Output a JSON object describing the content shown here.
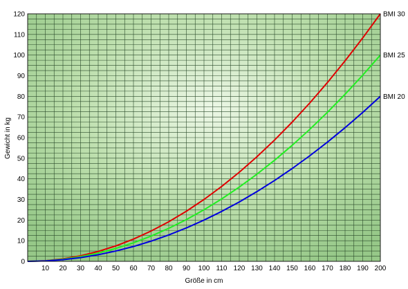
{
  "chart_data": {
    "type": "line",
    "title": "",
    "xlabel": "Größe in cm",
    "ylabel": "Gewicht in kg",
    "xlim": [
      0,
      200
    ],
    "ylim": [
      0,
      120
    ],
    "x_ticks": [
      "10",
      "20",
      "30",
      "40",
      "50",
      "60",
      "70",
      "80",
      "90",
      "100",
      "110",
      "120",
      "130",
      "140",
      "150",
      "160",
      "170",
      "180",
      "190",
      "200"
    ],
    "y_ticks": [
      "0",
      "10",
      "20",
      "30",
      "40",
      "50",
      "60",
      "70",
      "80",
      "90",
      "100",
      "110",
      "120"
    ],
    "grid": true,
    "legend": "none",
    "x": [
      0,
      10,
      20,
      30,
      40,
      50,
      60,
      70,
      80,
      90,
      100,
      110,
      120,
      130,
      140,
      150,
      160,
      170,
      180,
      190,
      200
    ],
    "series": [
      {
        "name": "BMI 30",
        "color": "#e00000",
        "values": [
          0,
          0.3,
          1.2,
          2.7,
          4.8,
          7.5,
          10.8,
          14.7,
          19.2,
          24.3,
          30,
          36.3,
          43.2,
          50.7,
          58.8,
          67.5,
          76.8,
          86.7,
          97.2,
          108.3,
          120
        ]
      },
      {
        "name": "BMI 25",
        "color": "#22ee22",
        "values": [
          0,
          0.25,
          1,
          2.25,
          4,
          6.25,
          9,
          12.25,
          16,
          20.25,
          25,
          30.25,
          36,
          42.25,
          49,
          56.25,
          64,
          72.25,
          81,
          90.25,
          100
        ]
      },
      {
        "name": "BMI 20",
        "color": "#0000dd",
        "values": [
          0,
          0.2,
          0.8,
          1.8,
          3.2,
          5,
          7.2,
          9.8,
          12.8,
          16.2,
          20,
          24.2,
          28.8,
          33.8,
          39.2,
          45,
          51.2,
          57.8,
          64.8,
          72.2,
          80
        ]
      }
    ]
  }
}
